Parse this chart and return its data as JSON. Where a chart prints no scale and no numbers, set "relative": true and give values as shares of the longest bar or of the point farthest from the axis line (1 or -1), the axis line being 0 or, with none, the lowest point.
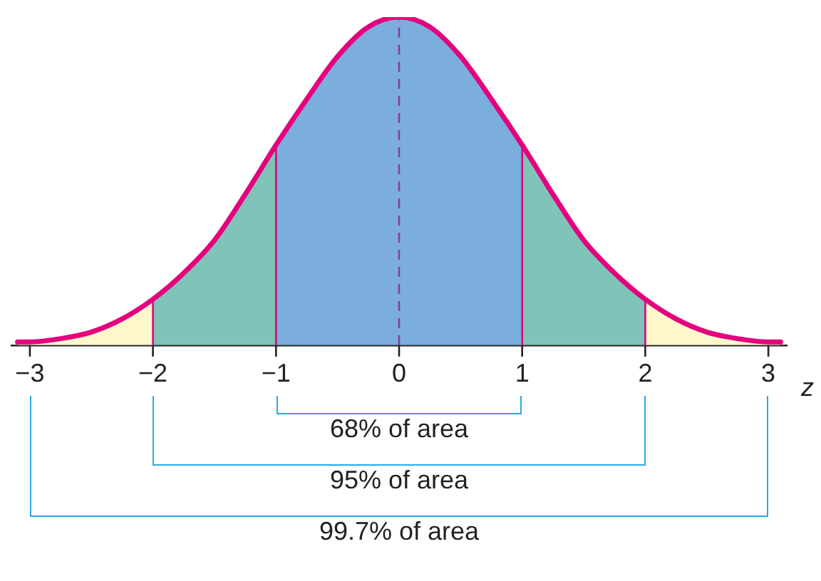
{
  "chart_data": {
    "type": "area",
    "relative": true,
    "xlabel": "z",
    "xlim": [
      -3.15,
      3.15
    ],
    "xticks": [
      {
        "value": -3,
        "label": "−3"
      },
      {
        "value": -2,
        "label": "−2"
      },
      {
        "value": -1,
        "label": "−1"
      },
      0,
      1,
      2,
      3
    ],
    "marker": "none",
    "series": [
      {
        "color": "#fff7cc",
        "x": [
          -3.1,
          -3,
          -2.75,
          -2.5,
          -2.25,
          -2
        ],
        "values": [
          0.01,
          0.01,
          0.02,
          0.04,
          0.08,
          0.14
        ]
      },
      {
        "color": "#7fc3b9",
        "x": [
          -2,
          -1.75,
          -1.5,
          -1.25,
          -1
        ],
        "values": [
          0.14,
          0.22,
          0.32,
          0.46,
          0.61
        ]
      },
      {
        "color": "#7baedd",
        "x": [
          -1,
          -0.75,
          -0.5,
          -0.25,
          0,
          0.25,
          0.5,
          0.75,
          1
        ],
        "values": [
          0.61,
          0.75,
          0.88,
          0.97,
          1,
          0.97,
          0.88,
          0.75,
          0.61
        ]
      },
      {
        "color": "#7fc3b9",
        "x": [
          1,
          1.25,
          1.5,
          1.75,
          2
        ],
        "values": [
          0.61,
          0.46,
          0.32,
          0.22,
          0.14
        ]
      },
      {
        "color": "#fff7cc",
        "x": [
          2,
          2.25,
          2.5,
          2.75,
          3,
          3.1
        ],
        "values": [
          0.14,
          0.08,
          0.04,
          0.02,
          0.01,
          0.01
        ]
      },
      {
        "type": "line",
        "color": "#e5007e",
        "x": [
          -3.1,
          -3,
          -2.75,
          -2.5,
          -2.25,
          -2,
          -1.75,
          -1.5,
          -1.25,
          -1,
          -0.75,
          -0.5,
          -0.25,
          0,
          0.25,
          0.5,
          0.75,
          1,
          1.25,
          1.5,
          1.75,
          2,
          2.25,
          2.5,
          2.75,
          3,
          3.1
        ],
        "values": [
          0.01,
          0.01,
          0.02,
          0.04,
          0.08,
          0.14,
          0.22,
          0.32,
          0.46,
          0.61,
          0.75,
          0.88,
          0.97,
          1,
          0.97,
          0.88,
          0.75,
          0.61,
          0.46,
          0.32,
          0.22,
          0.14,
          0.08,
          0.04,
          0.02,
          0.01,
          0.01
        ]
      }
    ],
    "ref_lines": [
      {
        "axis": "x",
        "value": 0,
        "color": "#8a3c9c",
        "line_style": "dashed"
      },
      {
        "axis": "x",
        "value": -2,
        "color": "#e5007e"
      },
      {
        "axis": "x",
        "value": -1,
        "color": "#e5007e"
      },
      {
        "axis": "x",
        "value": 1,
        "color": "#e5007e"
      },
      {
        "axis": "x",
        "value": 2,
        "color": "#e5007e"
      }
    ],
    "annotations": [
      "68% of area",
      "95% of area",
      "99.7% of area"
    ]
  }
}
